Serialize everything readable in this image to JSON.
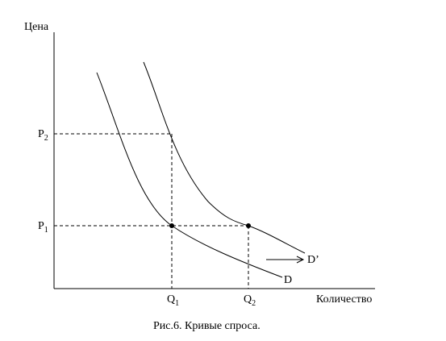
{
  "axes": {
    "y_label": "Цена",
    "x_label": "Количество"
  },
  "price_labels": {
    "p1": {
      "main": "P",
      "sub": "1"
    },
    "p2": {
      "main": "P",
      "sub": "2"
    }
  },
  "quantity_labels": {
    "q1": {
      "main": "Q",
      "sub": "1"
    },
    "q2": {
      "main": "Q",
      "sub": "2"
    }
  },
  "curves": {
    "d": "D",
    "d_prime": "D’"
  },
  "caption": "Рис.6. Кривые спроса.",
  "colors": {
    "ink": "#000000",
    "background": "#ffffff"
  }
}
